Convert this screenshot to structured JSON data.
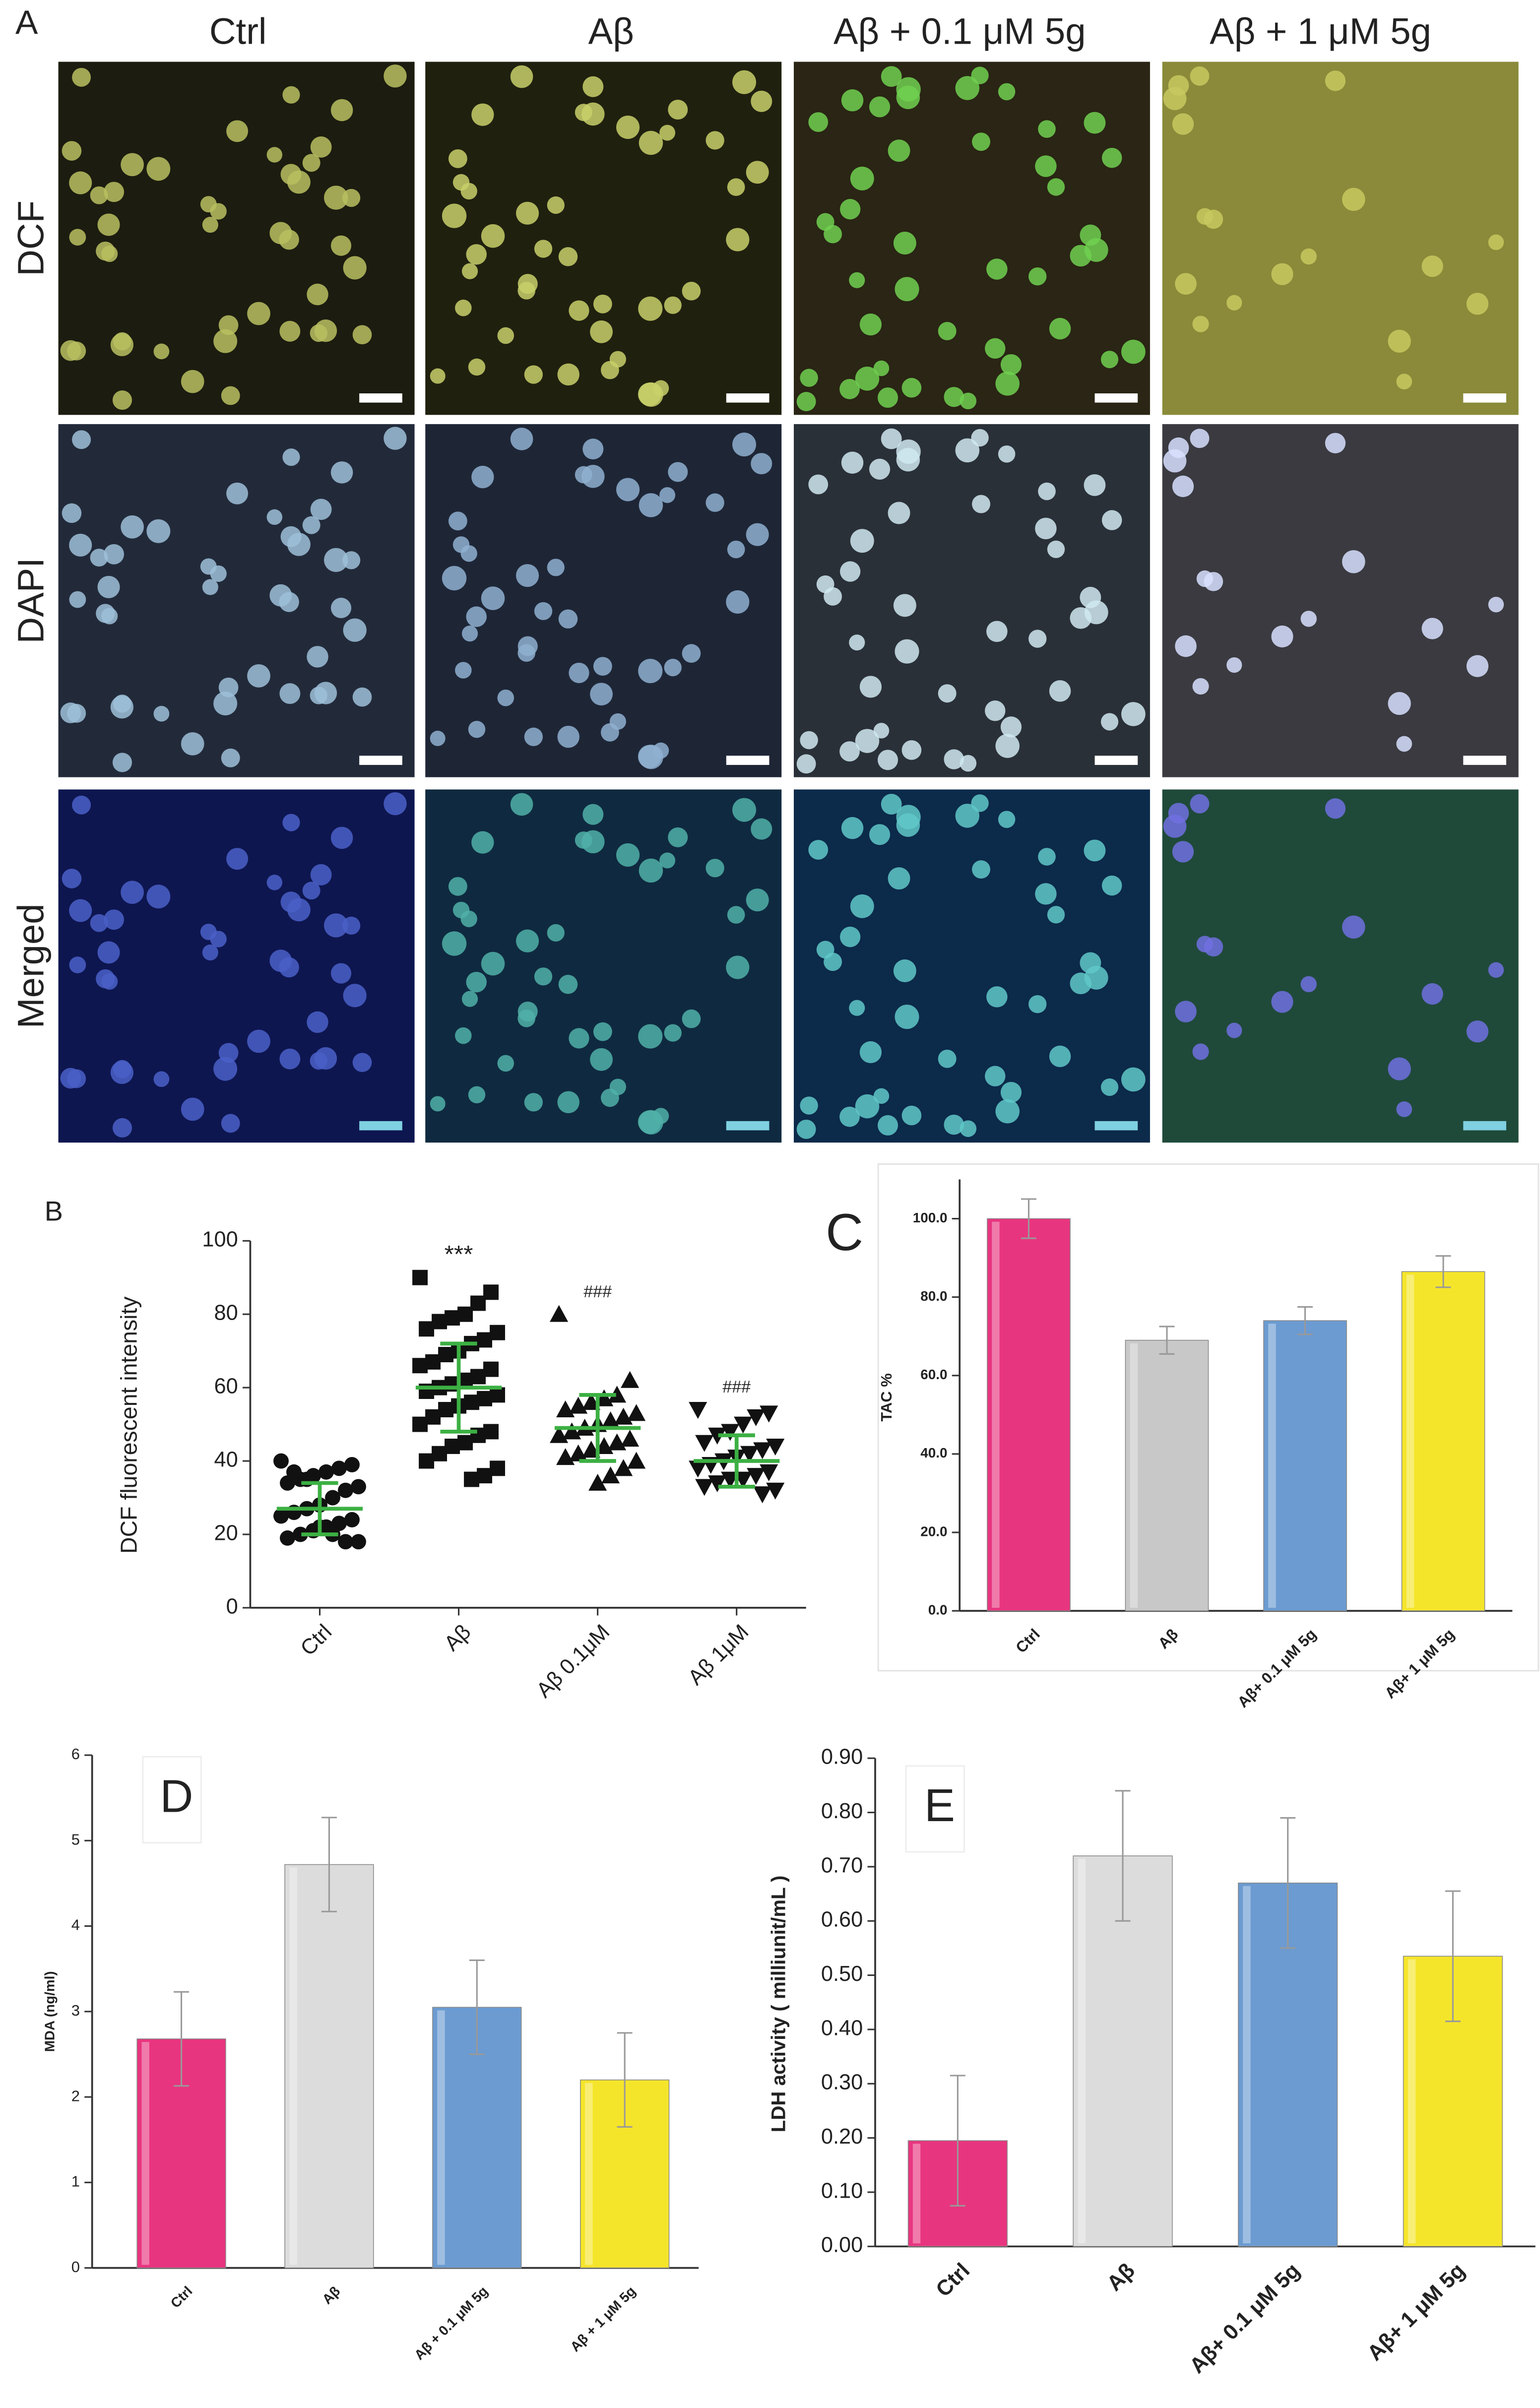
{
  "panel_a": {
    "label": "A",
    "columns": [
      "Ctrl",
      "Aβ",
      "Aβ + 0.1 μM 5g",
      "Aβ + 1 μM 5g"
    ],
    "rows": [
      "DCF",
      "DAPI",
      "Merged"
    ]
  },
  "chart_data": [
    {
      "type": "scatter",
      "panel": "B",
      "ylabel": "DCF fluorescent intensity",
      "categories": [
        "Ctrl",
        "Aβ",
        "Aβ 0.1μM",
        "Aβ 1μM"
      ],
      "markers": [
        "circle",
        "square",
        "triangle-up",
        "triangle-down"
      ],
      "color": "#111111",
      "mean_color": "#3cb043",
      "points": [
        [
          40,
          39,
          38,
          37,
          36,
          35,
          34,
          33,
          32,
          30,
          28,
          27,
          26,
          25,
          24,
          23,
          22,
          21,
          20,
          19,
          18,
          18,
          20,
          22,
          35,
          37
        ],
        [
          90,
          86,
          83,
          80,
          79,
          78,
          76,
          75,
          73,
          72,
          70,
          69,
          67,
          66,
          65,
          63,
          62,
          61,
          60,
          59,
          58,
          57,
          56,
          55,
          54,
          52,
          50,
          48,
          47,
          45,
          44,
          42,
          40,
          38,
          36,
          35
        ],
        [
          80,
          62,
          58,
          57,
          56,
          55,
          54,
          53,
          52,
          51,
          50,
          49,
          48,
          47,
          46,
          45,
          44,
          43,
          42,
          41,
          40,
          38,
          36,
          34
        ],
        [
          54,
          53,
          52,
          50,
          48,
          47,
          45,
          44,
          43,
          42,
          41,
          40,
          39,
          38,
          37,
          36,
          35,
          35,
          34,
          33,
          32,
          31
        ]
      ],
      "means": [
        27,
        60,
        49,
        40
      ],
      "sds": [
        7,
        12,
        9,
        7
      ],
      "annotations": [
        null,
        "***",
        "###",
        "###"
      ],
      "ylim": [
        0,
        100
      ],
      "yticks": [
        0,
        20,
        40,
        60,
        80,
        100
      ]
    },
    {
      "type": "bar",
      "panel": "C",
      "ylabel": "TAC %",
      "categories": [
        "Ctrl",
        "Aβ",
        "Aβ+ 0.1 μM 5g",
        "Aβ+ 1 μM 5g"
      ],
      "values": [
        100,
        69,
        74,
        86.5
      ],
      "errors": [
        5,
        3.5,
        3.5,
        4
      ],
      "colors": [
        "#e8357f",
        "#c8c8c8",
        "#6b9bd1",
        "#f5e52a"
      ],
      "ylim": [
        0,
        110
      ],
      "yticks": [
        {
          "value": 0,
          "label": "0.0"
        },
        {
          "value": 20,
          "label": "20.0"
        },
        {
          "value": 40,
          "label": "40.0"
        },
        {
          "value": 60,
          "label": "60.0"
        },
        {
          "value": 80,
          "label": "80.0"
        },
        {
          "value": 100,
          "label": "100.0"
        }
      ]
    },
    {
      "type": "bar",
      "panel": "D",
      "ylabel": "MDA (ng/ml)",
      "categories": [
        "Ctrl",
        "Aβ",
        "Aβ + 0.1 μM 5g",
        "Aβ + 1 μM 5g"
      ],
      "values": [
        2.68,
        4.72,
        3.05,
        2.2
      ],
      "errors": [
        0.55,
        0.55,
        0.55,
        0.55
      ],
      "colors": [
        "#e8357f",
        "#dcdcdc",
        "#6b9bd1",
        "#f5e52a"
      ],
      "ylim": [
        0,
        6
      ],
      "yticks": [
        0,
        1,
        2,
        3,
        4,
        5,
        6
      ]
    },
    {
      "type": "bar",
      "panel": "E",
      "ylabel": "LDH activity ( milliunit/mL )",
      "categories": [
        "Ctrl",
        "Aβ",
        "Aβ+ 0.1 μM 5g",
        "Aβ+ 1 μM 5g"
      ],
      "values": [
        0.195,
        0.72,
        0.67,
        0.535
      ],
      "errors": [
        0.12,
        0.12,
        0.12,
        0.12
      ],
      "colors": [
        "#e8357f",
        "#dcdcdc",
        "#6b9bd1",
        "#f5e52a"
      ],
      "ylim": [
        0,
        0.9
      ],
      "yticks": [
        {
          "value": 0,
          "label": "0.00"
        },
        {
          "value": 0.1,
          "label": "0.10"
        },
        {
          "value": 0.2,
          "label": "0.20"
        },
        {
          "value": 0.3,
          "label": "0.30"
        },
        {
          "value": 0.4,
          "label": "0.40"
        },
        {
          "value": 0.5,
          "label": "0.50"
        },
        {
          "value": 0.6,
          "label": "0.60"
        },
        {
          "value": 0.7,
          "label": "0.70"
        },
        {
          "value": 0.8,
          "label": "0.80"
        },
        {
          "value": 0.9,
          "label": "0.90"
        }
      ]
    }
  ]
}
